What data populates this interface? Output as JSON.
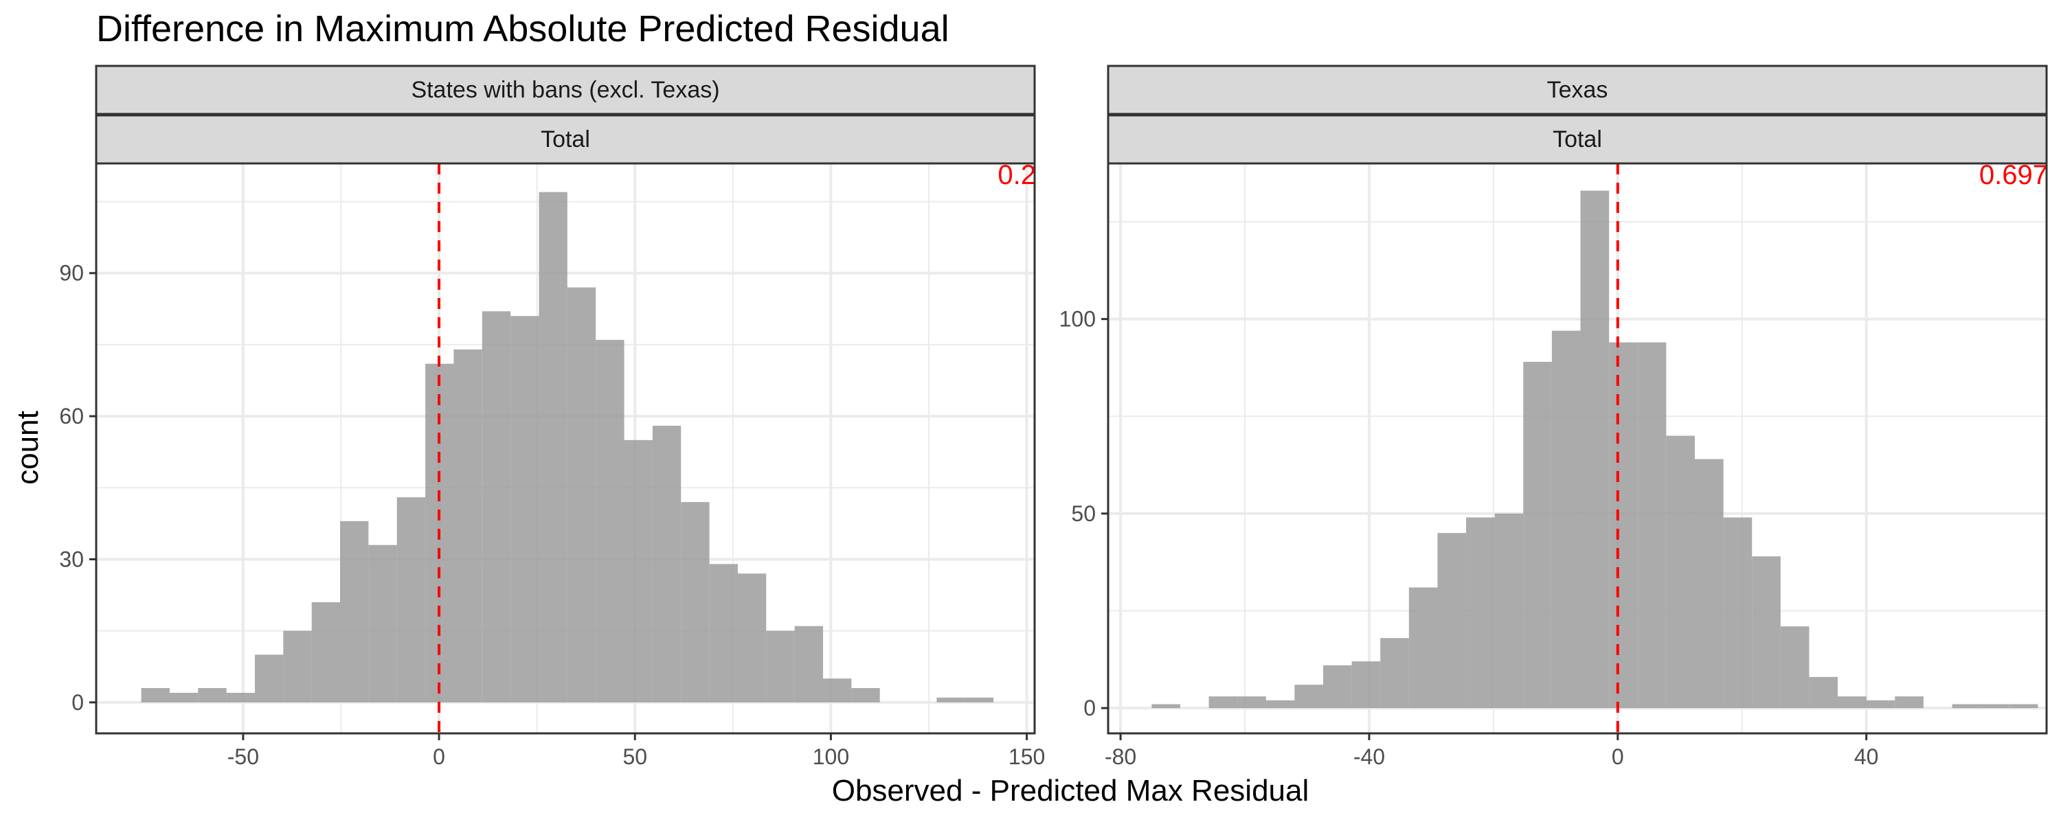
{
  "chart_data": {
    "type": "histogram",
    "title": "Difference in Maximum Absolute Predicted Residual",
    "xlabel": "Observed - Predicted Max Residual",
    "ylabel": "count",
    "colors": {
      "bars": "#999999",
      "reference_line": "#ff0000",
      "annotation": "#ff0000",
      "strip": "#d9d9d9"
    },
    "reference_line_x": 0,
    "reference_line_style": "dashed",
    "grid": true,
    "panels": [
      {
        "strip_top": "States with bans (excl. Texas)",
        "strip_bottom": "Total",
        "annotation": "0.2",
        "xlim": [
          -87.5,
          152
        ],
        "ylim": [
          -6.5,
          113
        ],
        "xticks": [
          -50,
          0,
          50,
          100,
          150
        ],
        "xtick_labels": [
          "-50",
          "0",
          "50",
          "100",
          "150"
        ],
        "yticks": [
          0,
          30,
          60,
          90
        ],
        "ytick_labels": [
          "0",
          "30",
          "60",
          "90"
        ],
        "bin_start": -76.0,
        "bin_width": 7.25,
        "counts": [
          3,
          2,
          3,
          2,
          10,
          15,
          21,
          38,
          33,
          43,
          71,
          74,
          82,
          81,
          107,
          87,
          76,
          55,
          58,
          42,
          29,
          27,
          15,
          16,
          5,
          3,
          0,
          0,
          1,
          1
        ]
      },
      {
        "strip_top": "Texas",
        "strip_bottom": "Total",
        "annotation": "0.697",
        "xlim": [
          -82,
          69
        ],
        "ylim": [
          -6.5,
          140
        ],
        "xticks": [
          -80,
          -40,
          0,
          40
        ],
        "xtick_labels": [
          "-80",
          "-40",
          "0",
          "40"
        ],
        "yticks": [
          0,
          50,
          100
        ],
        "ytick_labels": [
          "0",
          "50",
          "100"
        ],
        "bin_start": -75.0,
        "bin_width": 4.6,
        "counts": [
          1,
          0,
          3,
          3,
          2,
          6,
          11,
          12,
          18,
          31,
          45,
          49,
          50,
          89,
          97,
          133,
          94,
          94,
          70,
          64,
          49,
          39,
          21,
          8,
          3,
          2,
          3,
          0,
          1,
          1,
          1
        ]
      }
    ]
  }
}
